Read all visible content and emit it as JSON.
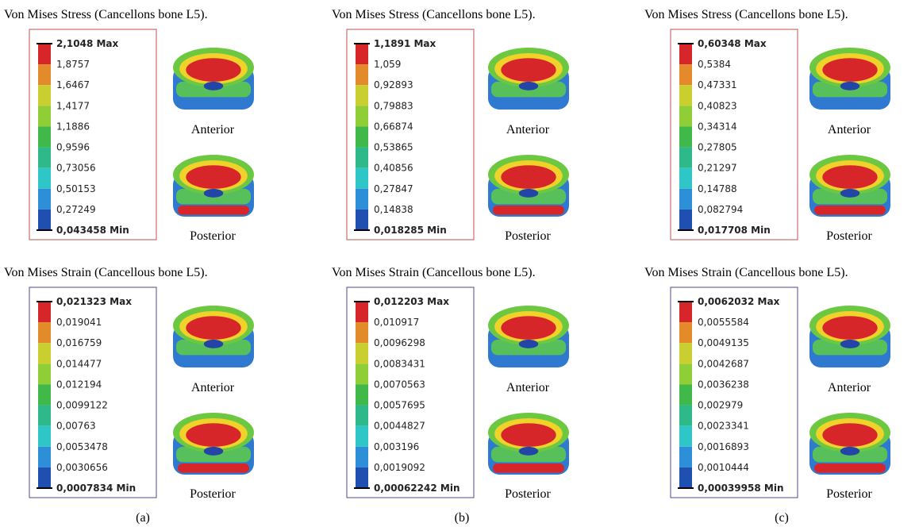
{
  "columns": [
    {
      "caption": "(a)",
      "panels": [
        {
          "title": "Von Mises Stress (Cancellons bone L5).",
          "labels": [
            "2,1048 Max",
            "1,8757",
            "1,6467",
            "1,4177",
            "1,1886",
            "0,9596",
            "0,73056",
            "0,50153",
            "0,27249",
            "0,043458 Min"
          ],
          "views": [
            "Anterior",
            "Posterior"
          ]
        },
        {
          "title": "Von Mises Strain (Cancellous bone L5).",
          "labels": [
            "0,021323 Max",
            "0,019041",
            "0,016759",
            "0,014477",
            "0,012194",
            "0,0099122",
            "0,00763",
            "0,0053478",
            "0,0030656",
            "0,0007834 Min"
          ],
          "views": [
            "Anterior",
            "Posterior"
          ]
        }
      ]
    },
    {
      "caption": "(b)",
      "panels": [
        {
          "title": "Von Mises Stress (Cancellons bone L5).",
          "labels": [
            "1,1891 Max",
            "1,059",
            "0,92893",
            "0,79883",
            "0,66874",
            "0,53865",
            "0,40856",
            "0,27847",
            "0,14838",
            "0,018285 Min"
          ],
          "views": [
            "Anterior",
            "Posterior"
          ]
        },
        {
          "title": "Von Mises Strain (Cancellous bone L5).",
          "labels": [
            "0,012203 Max",
            "0,010917",
            "0,0096298",
            "0,0083431",
            "0,0070563",
            "0,0057695",
            "0,0044827",
            "0,003196",
            "0,0019092",
            "0,00062242 Min"
          ],
          "views": [
            "Anterior",
            "Posterior"
          ]
        }
      ]
    },
    {
      "caption": "(c)",
      "panels": [
        {
          "title": "Von Mises Stress (Cancellons bone L5).",
          "labels": [
            "0,60348 Max",
            "0,5384",
            "0,47331",
            "0,40823",
            "0,34314",
            "0,27805",
            "0,21297",
            "0,14788",
            "0,082794",
            "0,017708 Min"
          ],
          "views": [
            "Anterior",
            "Posterior"
          ]
        },
        {
          "title": "Von Mises Strain (Cancellous bone L5).",
          "labels": [
            "0,0062032 Max",
            "0,0055584",
            "0,0049135",
            "0,0042687",
            "0,0036238",
            "0,002979",
            "0,0023341",
            "0,0016893",
            "0,0010444",
            "0,00039958 Min"
          ],
          "views": [
            "Anterior",
            "Posterior"
          ]
        }
      ]
    }
  ]
}
